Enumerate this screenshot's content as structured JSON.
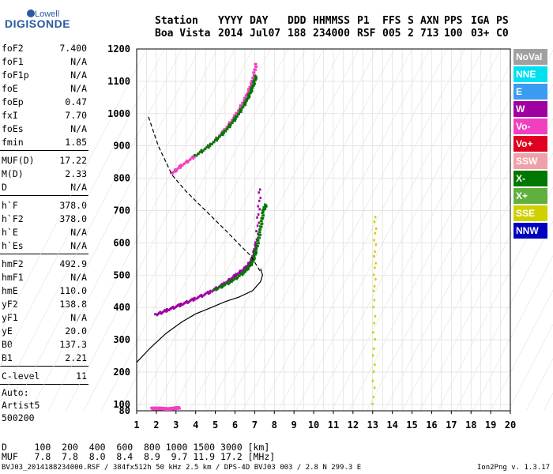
{
  "logo": {
    "line1": "Lowell",
    "line2": "DIGISONDE"
  },
  "header": {
    "labels": [
      "Station",
      "YYYY",
      "DAY",
      "DDD",
      "HHMMSS",
      "P1",
      "FFS",
      "S",
      "AXN",
      "PPS",
      "IGA",
      "PS"
    ],
    "values": [
      "Boa Vista",
      "2014",
      "Jul07",
      "188",
      "234000",
      "RSF",
      "005",
      "2",
      "713",
      "100",
      "03+",
      "C0"
    ]
  },
  "params_groups": [
    [
      [
        "foF2",
        "7.400"
      ],
      [
        "foF1",
        "N/A"
      ],
      [
        "foF1p",
        "N/A"
      ],
      [
        "foE",
        "N/A"
      ],
      [
        "foEp",
        "0.47"
      ],
      [
        "fxI",
        "7.70"
      ],
      [
        "foEs",
        "N/A"
      ],
      [
        "fmin",
        "1.85"
      ]
    ],
    [
      [
        "MUF(D)",
        "17.22"
      ],
      [
        "M(D)",
        "2.33"
      ],
      [
        "D",
        "N/A"
      ]
    ],
    [
      [
        "h`F",
        "378.0"
      ],
      [
        "h`F2",
        "378.0"
      ],
      [
        "h`E",
        "N/A"
      ],
      [
        "h`Es",
        "N/A"
      ]
    ],
    [
      [
        "hmF2",
        "492.9"
      ],
      [
        "hmF1",
        "N/A"
      ],
      [
        "hmE",
        "110.0"
      ],
      [
        "yF2",
        "138.8"
      ],
      [
        "yF1",
        "N/A"
      ],
      [
        "yE",
        "20.0"
      ],
      [
        "B0",
        "137.3"
      ],
      [
        "B1",
        "2.21"
      ]
    ],
    [
      [
        "C-level",
        "11"
      ]
    ]
  ],
  "auto": [
    "Auto:",
    "Artist5",
    "500200"
  ],
  "legend": [
    {
      "label": "NoVal",
      "color": "#a0a0a0"
    },
    {
      "label": "NNE",
      "color": "#00e0f0"
    },
    {
      "label": "E",
      "color": "#3a9cf0"
    },
    {
      "label": "W",
      "color": "#a000a0"
    },
    {
      "label": "Vo-",
      "color": "#f040c0"
    },
    {
      "label": "Vo+",
      "color": "#e00020"
    },
    {
      "label": "SSW",
      "color": "#f0a0a8"
    },
    {
      "label": "X-",
      "color": "#007800"
    },
    {
      "label": "X+",
      "color": "#60b040"
    },
    {
      "label": "SSE",
      "color": "#d0d000"
    },
    {
      "label": "NNW",
      "color": "#0000c0"
    }
  ],
  "muf_table": {
    "row1_label": "D",
    "row1": [
      "100",
      "200",
      "400",
      "600",
      "800",
      "1000",
      "1500",
      "3000"
    ],
    "row1_unit": "[km]",
    "row2_label": "MUF",
    "row2": [
      "7.8",
      "7.8",
      "8.0",
      "8.4",
      "8.9",
      "9.7",
      "11.9",
      "17.2"
    ],
    "row2_unit": "[MHz]"
  },
  "footer": {
    "left": "BVJ03_2014188234000.RSF / 384fx512h 50 kHz 2.5 km / DPS-4D BVJ03 003 / 2.8 N 299.3 E",
    "right": "Ion2Png v. 1.3.17"
  },
  "chart_data": {
    "type": "scatter",
    "xlim": [
      1,
      20
    ],
    "ylim": [
      80,
      1200
    ],
    "x_ticks": [
      1,
      2,
      3,
      4,
      5,
      6,
      7,
      8,
      9,
      10,
      11,
      12,
      13,
      14,
      15,
      16,
      17,
      18,
      19,
      20
    ],
    "y_ticks": [
      80,
      100,
      200,
      300,
      400,
      500,
      600,
      700,
      800,
      900,
      1000,
      1100,
      1200
    ],
    "grid": true,
    "series": [
      {
        "kind": "traces",
        "color": "#a000a0",
        "x": [
          2.0,
          2.6,
          3.3,
          4.0,
          4.8,
          5.5,
          6.1,
          6.6,
          6.9,
          7.1,
          7.3
        ],
        "y": [
          378,
          393,
          410,
          428,
          450,
          475,
          502,
          525,
          550,
          600,
          780
        ]
      },
      {
        "kind": "traces",
        "color": "#007800",
        "x": [
          5.0,
          5.8,
          6.5,
          6.9,
          7.1,
          7.3,
          7.45,
          7.6
        ],
        "y": [
          455,
          480,
          510,
          540,
          580,
          640,
          700,
          720
        ]
      },
      {
        "kind": "traces",
        "color": "#f040c0",
        "x": [
          2.8,
          3.3,
          4.0,
          4.8,
          5.5,
          6.1,
          6.6,
          6.9,
          7.1
        ],
        "y": [
          815,
          840,
          870,
          905,
          950,
          1000,
          1055,
          1100,
          1160
        ]
      },
      {
        "kind": "traces",
        "color": "#007800",
        "x": [
          4.0,
          4.8,
          5.5,
          6.1,
          6.6,
          6.9,
          7.1
        ],
        "y": [
          870,
          905,
          945,
          990,
          1040,
          1080,
          1120
        ]
      },
      {
        "kind": "traces",
        "color": "#f040c0",
        "x": [
          1.8,
          2.0,
          2.2,
          2.4,
          2.6,
          2.8,
          3.0,
          3.2
        ],
        "y": [
          88,
          88,
          88,
          87,
          86,
          87,
          89,
          90
        ]
      },
      {
        "kind": "traces",
        "color": "#d0d000",
        "x": [
          13.05,
          13.1,
          13.15
        ],
        "y": [
          100,
          450,
          700
        ]
      }
    ],
    "profile_curve": {
      "x": [
        1.0,
        1.7,
        2.5,
        3.3,
        4.0,
        4.8,
        5.5,
        6.2,
        6.9,
        7.3,
        7.4,
        7.3
      ],
      "y": [
        230,
        275,
        320,
        355,
        380,
        400,
        418,
        432,
        452,
        480,
        500,
        520
      ]
    },
    "dashed_curve": {
      "x": [
        1.6,
        2.1,
        2.8,
        3.5,
        4.5,
        5.5,
        6.3,
        6.8,
        7.1,
        7.3
      ],
      "y": [
        990,
        900,
        810,
        760,
        700,
        640,
        590,
        560,
        530,
        510
      ]
    }
  }
}
